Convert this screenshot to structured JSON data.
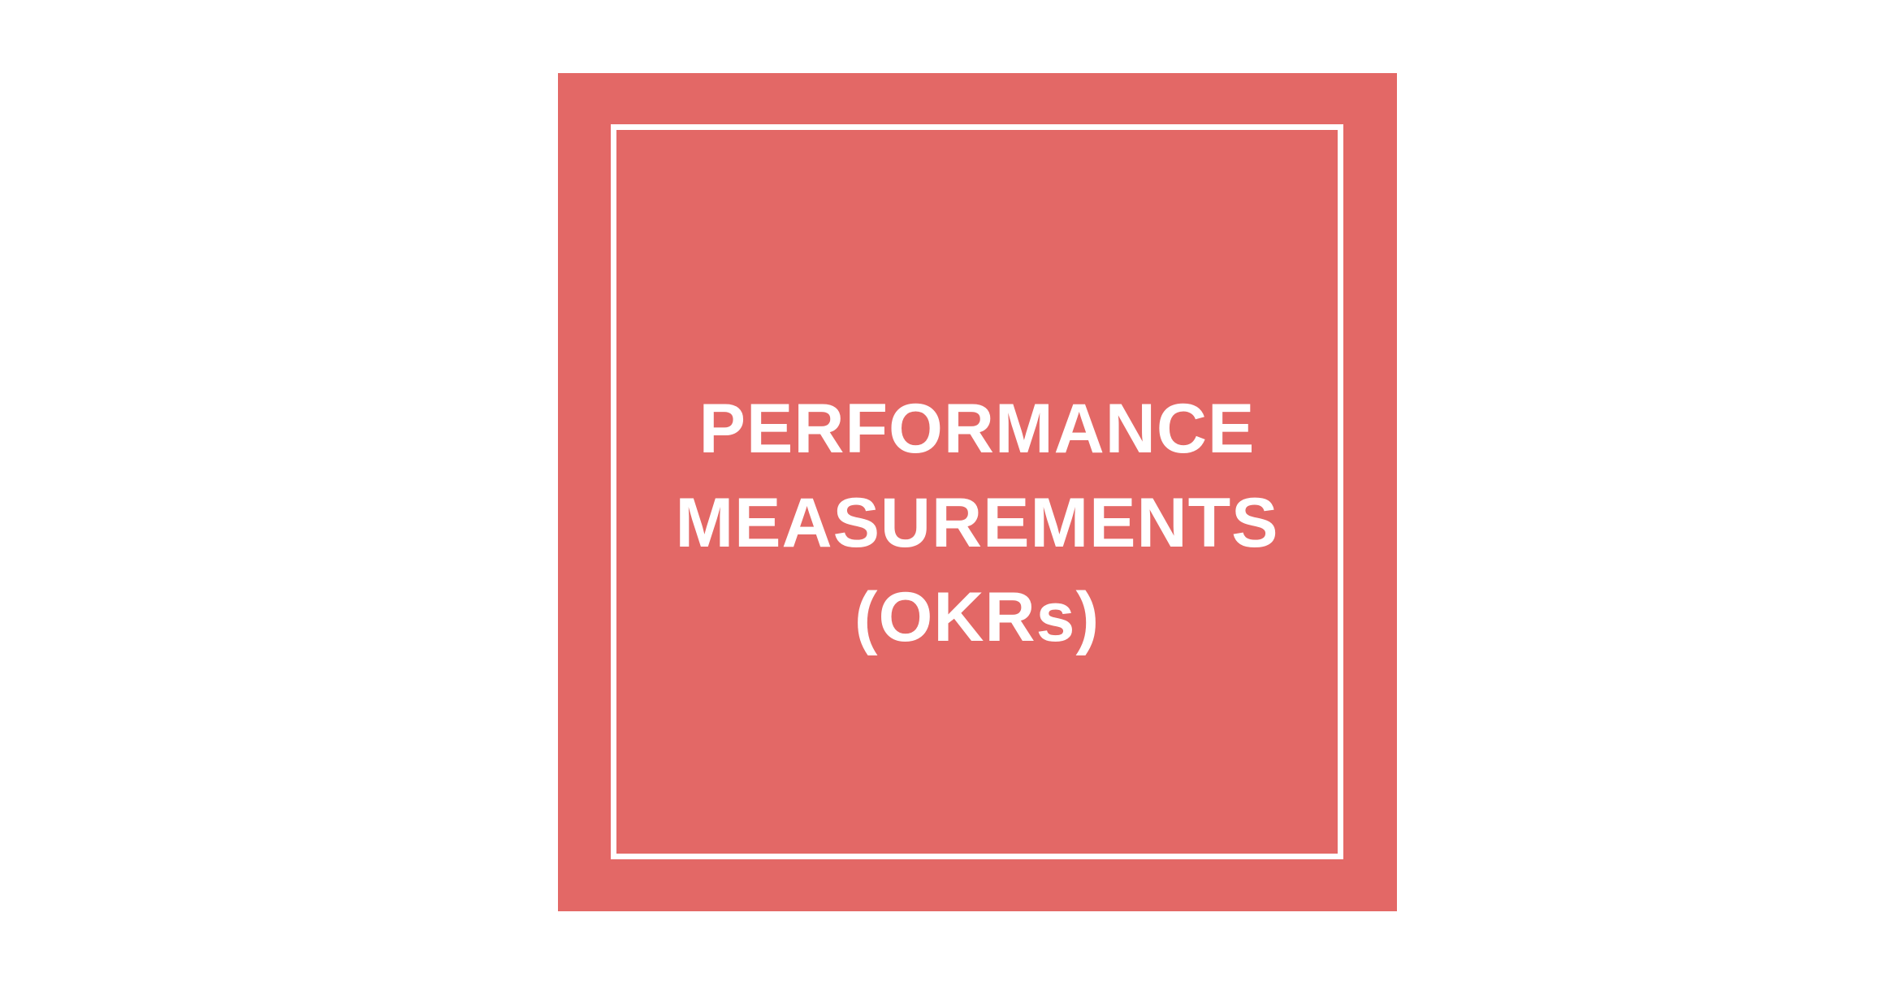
{
  "slide": {
    "background_color": "#e36866",
    "frame_color": "#ffffff",
    "title_lines": [
      "PERFORMANCE",
      "MEASUREMENTS",
      "(OKRs)"
    ]
  }
}
